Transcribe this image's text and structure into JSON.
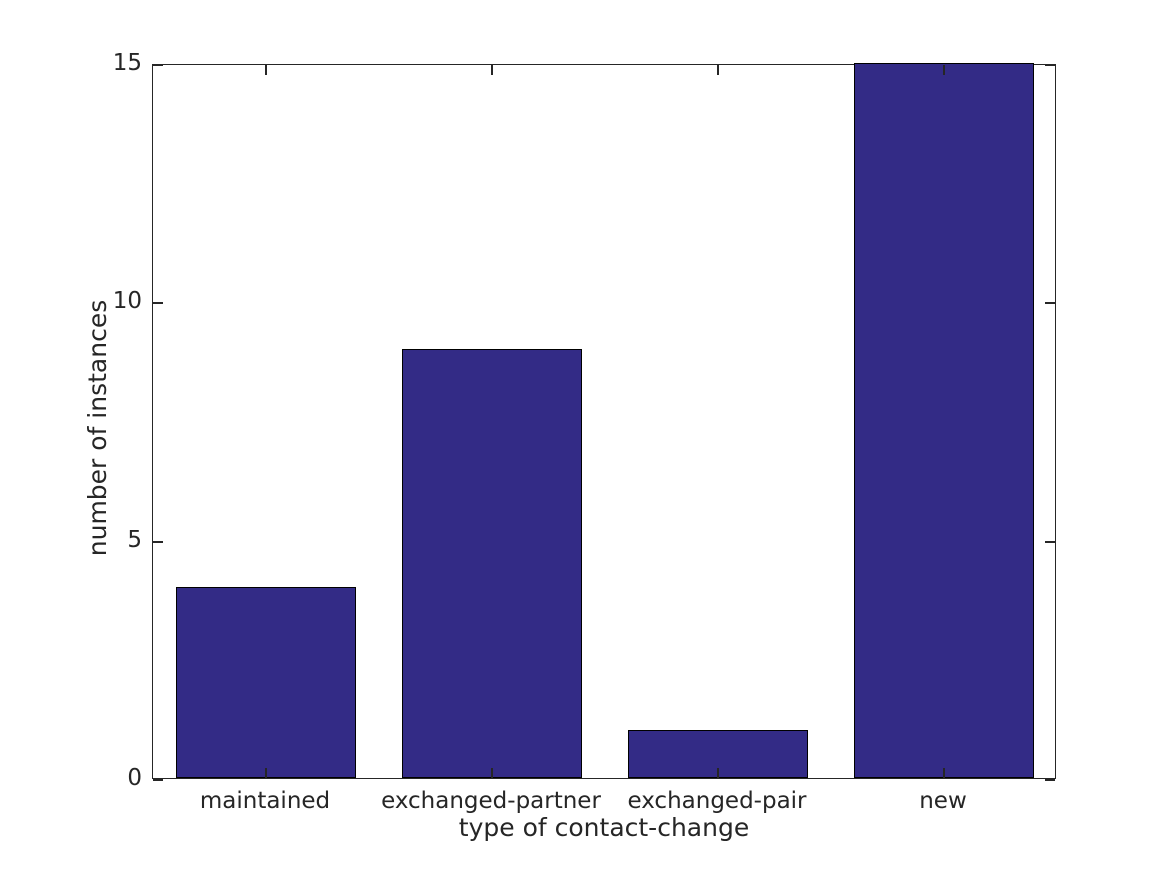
{
  "figure": {
    "background": "#ffffff"
  },
  "chart_data": {
    "type": "bar",
    "title": "",
    "categories": [
      "maintained",
      "exchanged-partner",
      "exchanged-pair",
      "new"
    ],
    "values": [
      4,
      9,
      1,
      15
    ],
    "xlabel": "type of contact-change",
    "ylabel": "number of instances",
    "ylim": [
      0,
      15
    ],
    "yticks": [
      0,
      5,
      10,
      15
    ],
    "ytick_labels": [
      "0",
      "5",
      "10",
      "15"
    ],
    "bar_width_fraction": 0.8,
    "grid": false,
    "legend_position": "none",
    "tick_direction": "in",
    "box": true,
    "colors": {
      "bar_fill": "#332b86",
      "bar_edge": "#000000",
      "axis": "#262626",
      "text": "#262626",
      "background": "#ffffff"
    }
  }
}
